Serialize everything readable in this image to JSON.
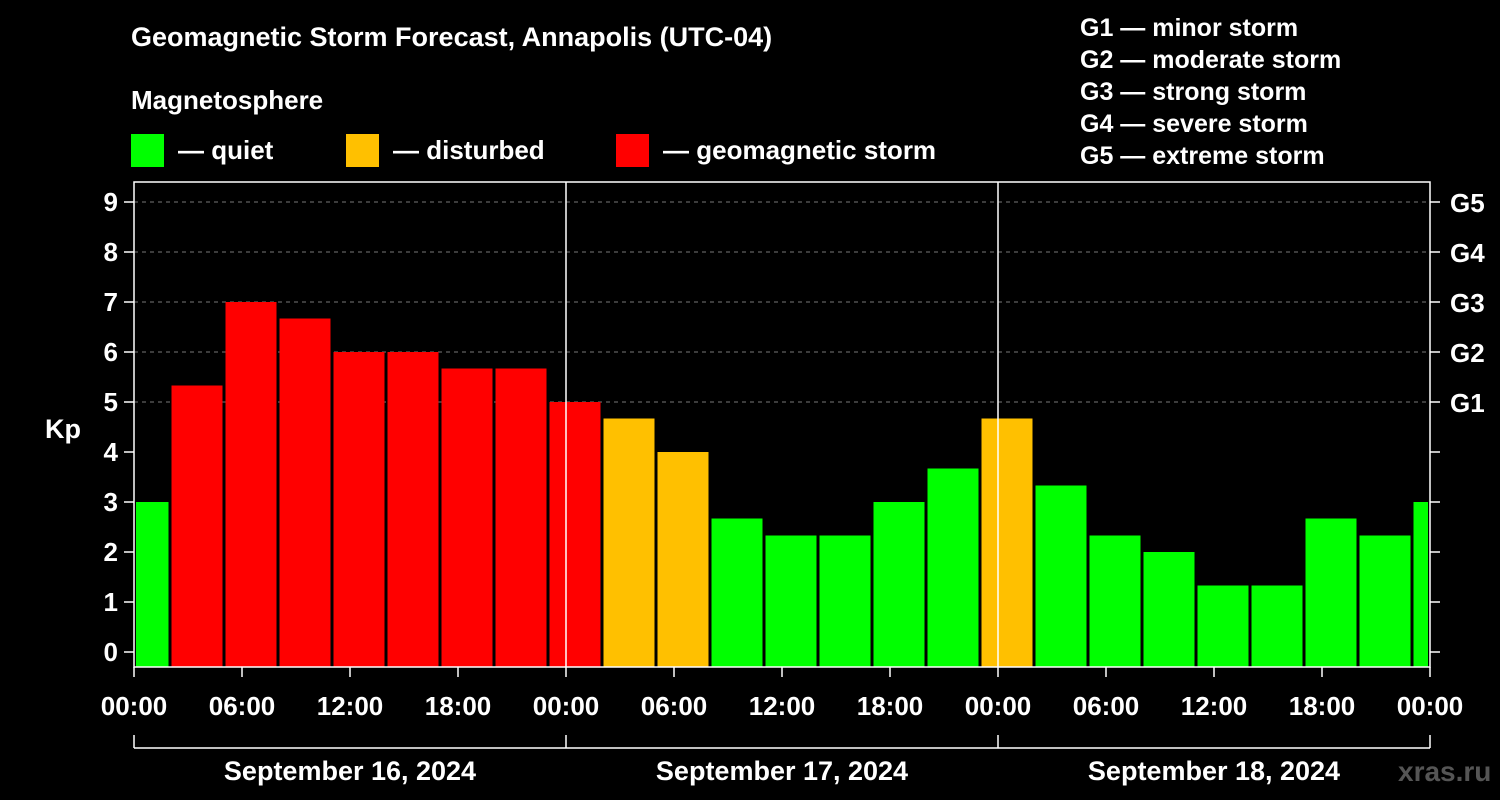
{
  "title": "Geomagnetic Storm Forecast, Annapolis (UTC-04)",
  "legend": {
    "heading": "Magnetosphere",
    "items": [
      {
        "label": "— quiet",
        "color": "#00ff00"
      },
      {
        "label": "— disturbed",
        "color": "#ffc000"
      },
      {
        "label": "— geomagnetic storm",
        "color": "#ff0000"
      }
    ]
  },
  "storm_scale": [
    "G1 — minor storm",
    "G2 — moderate storm",
    "G3 — strong storm",
    "G4 — severe storm",
    "G5 — extreme storm"
  ],
  "watermark": "xras.ru",
  "chart_data": {
    "type": "bar",
    "title": "Geomagnetic Storm Forecast, Annapolis (UTC-04)",
    "ylabel": "Kp",
    "ylim": [
      0,
      9
    ],
    "ylim_plot": [
      -0.3,
      9.4
    ],
    "y_ticks": [
      "0",
      "1",
      "2",
      "3",
      "4",
      "5",
      "6",
      "7",
      "8",
      "9"
    ],
    "right_ticks": [
      {
        "value": 5,
        "label": "G1"
      },
      {
        "value": 6,
        "label": "G2"
      },
      {
        "value": 7,
        "label": "G3"
      },
      {
        "value": 8,
        "label": "G4"
      },
      {
        "value": 9,
        "label": "G5"
      }
    ],
    "x_range_hours": [
      0,
      72
    ],
    "x_ticks": [
      {
        "hour": 0,
        "label": "00:00"
      },
      {
        "hour": 6,
        "label": "06:00"
      },
      {
        "hour": 12,
        "label": "12:00"
      },
      {
        "hour": 18,
        "label": "18:00"
      },
      {
        "hour": 24,
        "label": "00:00"
      },
      {
        "hour": 30,
        "label": "06:00"
      },
      {
        "hour": 36,
        "label": "12:00"
      },
      {
        "hour": 42,
        "label": "18:00"
      },
      {
        "hour": 48,
        "label": "00:00"
      },
      {
        "hour": 54,
        "label": "06:00"
      },
      {
        "hour": 60,
        "label": "12:00"
      },
      {
        "hour": 66,
        "label": "18:00"
      },
      {
        "hour": 72,
        "label": "00:00"
      }
    ],
    "day_separators_hours": [
      24,
      48
    ],
    "dates": [
      {
        "start": 0,
        "end": 24,
        "label": "September 16, 2024"
      },
      {
        "start": 24,
        "end": 48,
        "label": "September 17, 2024"
      },
      {
        "start": 48,
        "end": 72,
        "label": "September 18, 2024"
      }
    ],
    "bars": [
      {
        "start": -1,
        "end": 2,
        "kp": 3.0,
        "status": "quiet"
      },
      {
        "start": 2,
        "end": 5,
        "kp": 5.33,
        "status": "storm"
      },
      {
        "start": 5,
        "end": 8,
        "kp": 7.0,
        "status": "storm"
      },
      {
        "start": 8,
        "end": 11,
        "kp": 6.67,
        "status": "storm"
      },
      {
        "start": 11,
        "end": 14,
        "kp": 6.0,
        "status": "storm"
      },
      {
        "start": 14,
        "end": 17,
        "kp": 6.0,
        "status": "storm"
      },
      {
        "start": 17,
        "end": 20,
        "kp": 5.67,
        "status": "storm"
      },
      {
        "start": 20,
        "end": 23,
        "kp": 5.67,
        "status": "storm"
      },
      {
        "start": 23,
        "end": 26,
        "kp": 5.0,
        "status": "storm"
      },
      {
        "start": 26,
        "end": 29,
        "kp": 4.67,
        "status": "disturbed"
      },
      {
        "start": 29,
        "end": 32,
        "kp": 4.0,
        "status": "disturbed"
      },
      {
        "start": 32,
        "end": 35,
        "kp": 2.67,
        "status": "quiet"
      },
      {
        "start": 35,
        "end": 38,
        "kp": 2.33,
        "status": "quiet"
      },
      {
        "start": 38,
        "end": 41,
        "kp": 2.33,
        "status": "quiet"
      },
      {
        "start": 41,
        "end": 44,
        "kp": 3.0,
        "status": "quiet"
      },
      {
        "start": 44,
        "end": 47,
        "kp": 3.67,
        "status": "quiet"
      },
      {
        "start": 47,
        "end": 50,
        "kp": 4.67,
        "status": "disturbed"
      },
      {
        "start": 50,
        "end": 53,
        "kp": 3.33,
        "status": "quiet"
      },
      {
        "start": 53,
        "end": 56,
        "kp": 2.33,
        "status": "quiet"
      },
      {
        "start": 56,
        "end": 59,
        "kp": 2.0,
        "status": "quiet"
      },
      {
        "start": 59,
        "end": 62,
        "kp": 1.33,
        "status": "quiet"
      },
      {
        "start": 62,
        "end": 65,
        "kp": 1.33,
        "status": "quiet"
      },
      {
        "start": 65,
        "end": 68,
        "kp": 2.67,
        "status": "quiet"
      },
      {
        "start": 68,
        "end": 71,
        "kp": 2.33,
        "status": "quiet"
      },
      {
        "start": 71,
        "end": 74,
        "kp": 3.0,
        "status": "quiet"
      }
    ],
    "colors": {
      "quiet": "#00ff00",
      "disturbed": "#ffc000",
      "storm": "#ff0000"
    }
  }
}
